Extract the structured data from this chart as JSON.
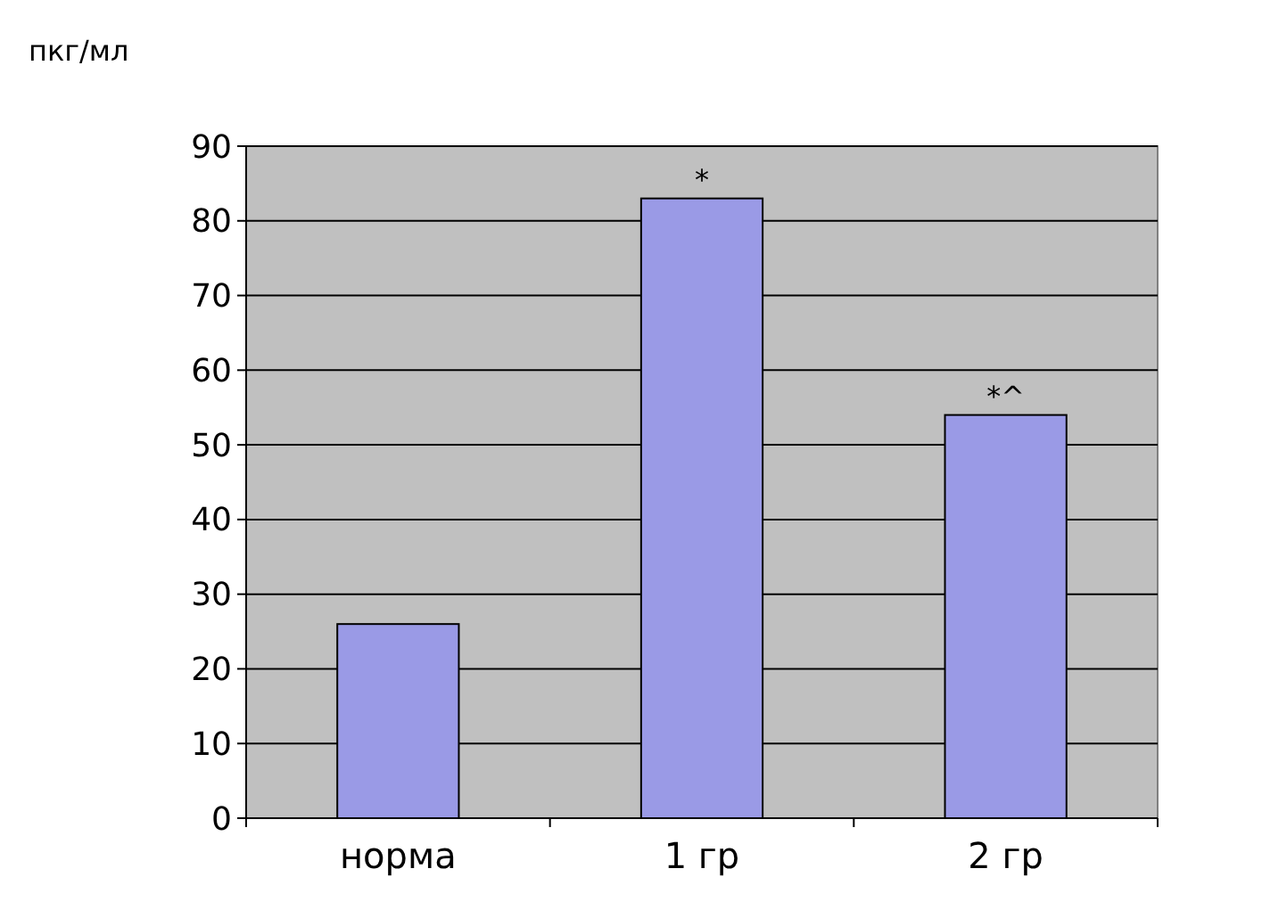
{
  "chart_data": {
    "type": "bar",
    "ylabel": "пкг/мл",
    "categories": [
      "норма",
      "1 гр",
      "2 гр"
    ],
    "values": [
      26,
      83,
      54
    ],
    "color": "#9a9ae6",
    "ylim": [
      0,
      90
    ],
    "yticks": [
      0,
      10,
      20,
      30,
      40,
      50,
      60,
      70,
      80,
      90
    ],
    "grid": "y",
    "annotations": [
      {
        "text": "*",
        "x": "1 гр",
        "y": 83
      },
      {
        "text": "*^",
        "x": "2 гр",
        "y": 54
      }
    ]
  }
}
